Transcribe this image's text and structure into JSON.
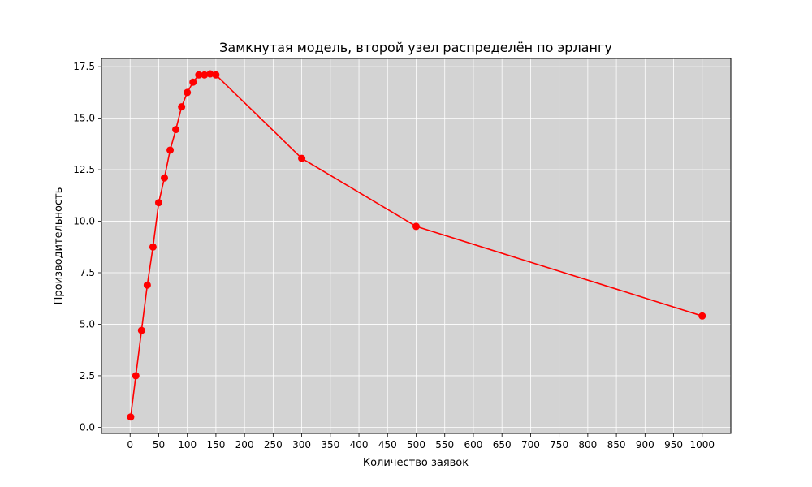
{
  "chart_data": {
    "type": "line",
    "title": "Замкнутая модель, второй узел распределён по эрлангу",
    "xlabel": "Количество заявок",
    "ylabel": "Производительность",
    "xlim": [
      -50,
      1050
    ],
    "ylim": [
      -0.3,
      17.9
    ],
    "grid": true,
    "x_ticks": [
      0,
      50,
      100,
      150,
      200,
      250,
      300,
      350,
      400,
      450,
      500,
      550,
      600,
      650,
      700,
      750,
      800,
      850,
      900,
      950,
      1000
    ],
    "x_tick_labels": [
      "0",
      "50",
      "100",
      "150",
      "200",
      "250",
      "300",
      "350",
      "400",
      "450",
      "500",
      "550",
      "600",
      "650",
      "700",
      "750",
      "800",
      "850",
      "900",
      "950",
      "1000"
    ],
    "y_ticks": [
      0,
      2.5,
      5,
      7.5,
      10,
      12.5,
      15,
      17.5
    ],
    "y_tick_labels": [
      "0.0",
      "2.5",
      "5.0",
      "7.5",
      "10.0",
      "12.5",
      "15.0",
      "17.5"
    ],
    "series": [
      {
        "color": "#ff0000",
        "x": [
          1,
          10,
          20,
          30,
          40,
          50,
          60,
          70,
          80,
          90,
          100,
          110,
          120,
          130,
          140,
          150,
          300,
          500,
          1000
        ],
        "y": [
          0.5,
          2.5,
          4.7,
          6.9,
          8.75,
          10.9,
          12.1,
          13.45,
          14.45,
          15.55,
          16.25,
          16.75,
          17.1,
          17.1,
          17.15,
          17.1,
          13.05,
          9.75,
          5.4
        ]
      }
    ],
    "colors": {
      "plot_background": "#d3d3d3",
      "grid": "#ffffff",
      "line": "#ff0000"
    }
  }
}
